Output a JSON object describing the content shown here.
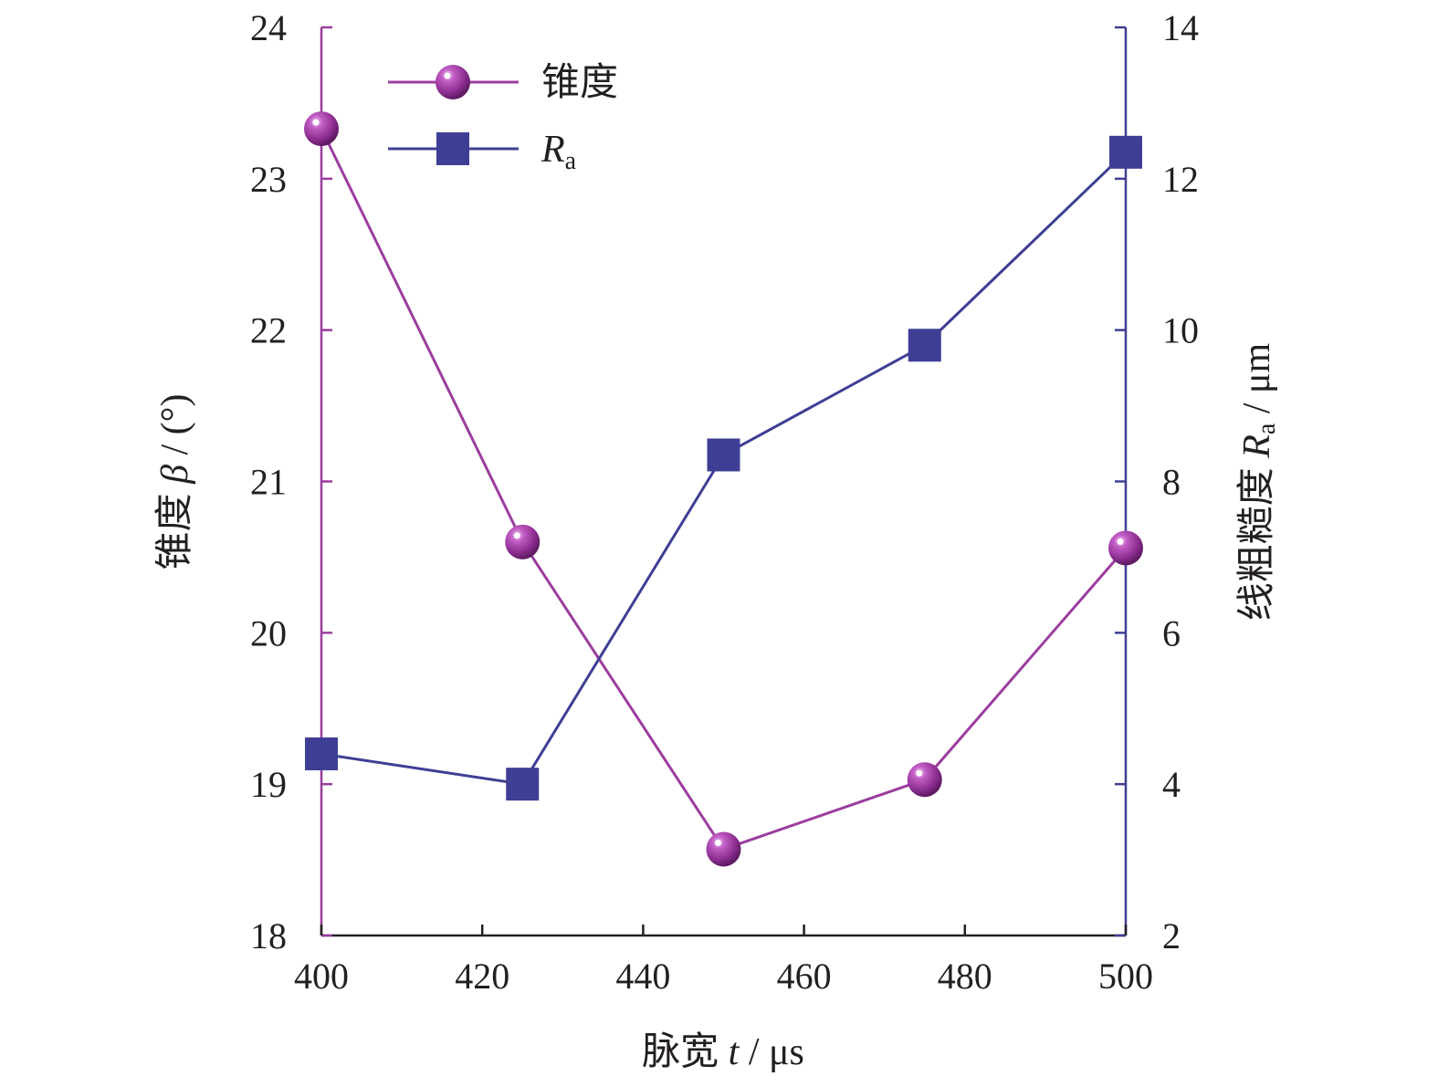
{
  "chart_data": {
    "type": "line",
    "x": [
      400,
      425,
      450,
      475,
      500
    ],
    "xlim": [
      400,
      500
    ],
    "x_ticks": [
      "400",
      "420",
      "440",
      "460",
      "480",
      "500"
    ],
    "xlabel": {
      "prefix": "脉宽 ",
      "symbol": "t",
      "unit": " / μs"
    },
    "ylim_left": [
      18,
      24
    ],
    "y_ticks_left": [
      "18",
      "19",
      "20",
      "21",
      "22",
      "23",
      "24"
    ],
    "ylabel_left": {
      "prefix": "锥度 ",
      "symbol": "β",
      "unit": " / (°)"
    },
    "ylim_right": [
      2,
      14
    ],
    "y_ticks_right": [
      "2",
      "4",
      "6",
      "8",
      "10",
      "12",
      "14"
    ],
    "ylabel_right": {
      "prefix": "线粗糙度 ",
      "symbol": "R",
      "sub": "a",
      "unit": " / μm"
    },
    "grid": false,
    "legend_position": "top-left",
    "series": [
      {
        "name": "锥度",
        "axis": "left",
        "marker": "sphere",
        "color": "#9b3d9e",
        "values": [
          23.33,
          20.6,
          18.57,
          19.03,
          20.56
        ]
      },
      {
        "name": "R",
        "name_sub": "a",
        "axis": "right",
        "marker": "square",
        "color": "#3e3f94",
        "values": [
          4.4,
          4.0,
          8.35,
          9.8,
          12.35
        ]
      }
    ]
  }
}
